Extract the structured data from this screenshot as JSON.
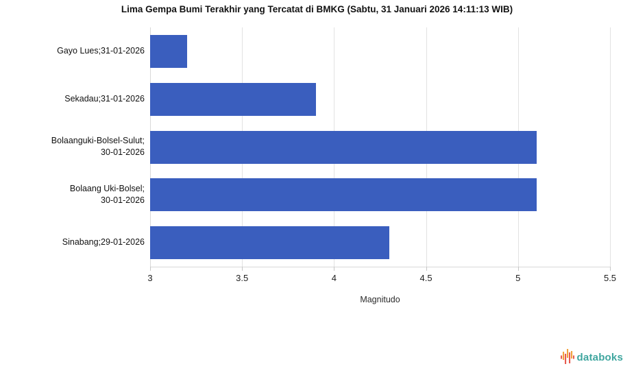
{
  "chart_data": {
    "type": "bar",
    "orientation": "horizontal",
    "title": "Lima Gempa Bumi Terakhir yang Tercatat di BMKG (Sabtu, 31 Januari 2026 14:11:13 WIB)",
    "categories": [
      "Gayo Lues;31-01-2026",
      "Sekadau;31-01-2026",
      "Bolaanguki-Bolsel-Sulut;\n30-01-2026",
      "Bolaang Uki-Bolsel;\n30-01-2026",
      "Sinabang;29-01-2026"
    ],
    "values": [
      3.2,
      3.9,
      5.1,
      5.1,
      4.3
    ],
    "xlabel": "Magnitudo",
    "ylabel": "",
    "xlim": [
      3,
      5.5
    ],
    "xticks": [
      3,
      3.5,
      4,
      4.5,
      5,
      5.5
    ],
    "xtick_labels": [
      "3",
      "3.5",
      "4",
      "4.5",
      "5",
      "5.5"
    ],
    "grid": true,
    "legend": "none",
    "bar_color": "#3a5ebe"
  },
  "footer": {
    "brand": "databoks",
    "brand_color": "#3fa69f",
    "icon_colors": [
      "#f2a13c",
      "#e75a4e"
    ]
  }
}
